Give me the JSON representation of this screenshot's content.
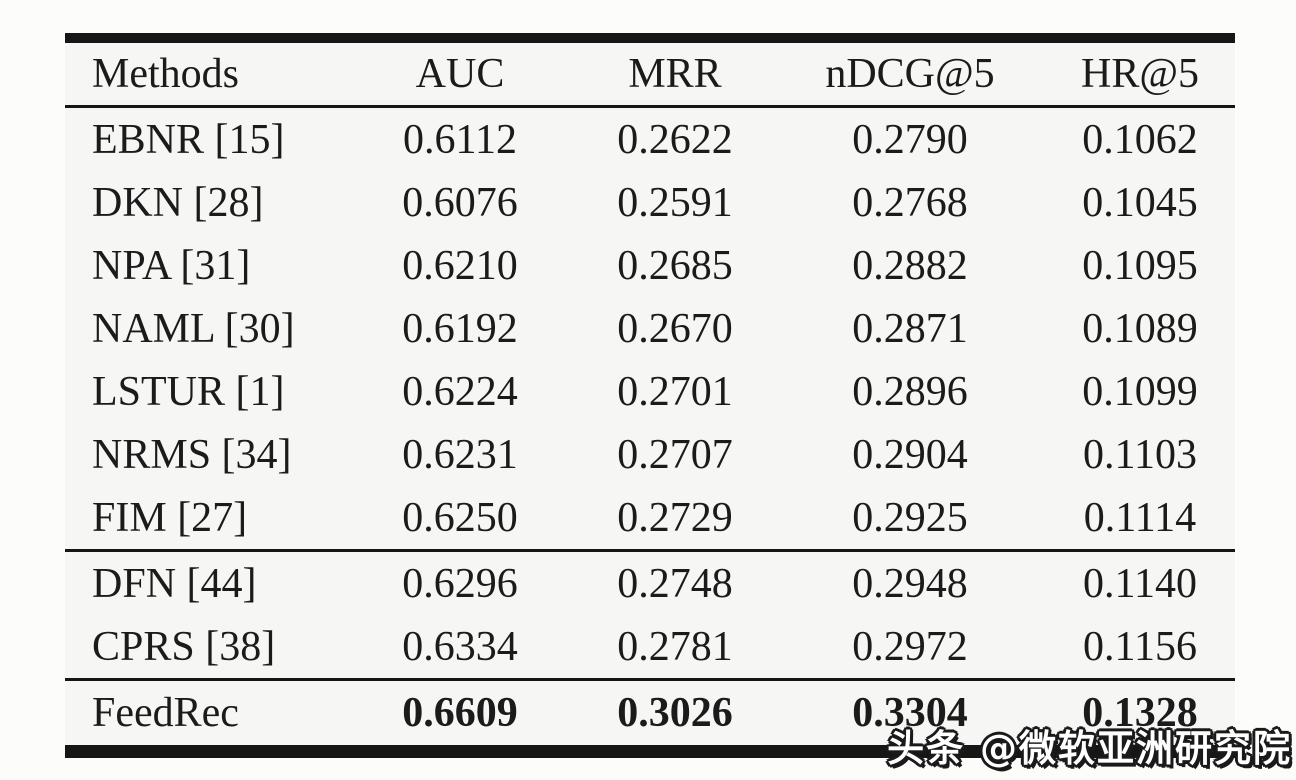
{
  "table": {
    "columns": [
      "Methods",
      "AUC",
      "MRR",
      "nDCG@5",
      "HR@5"
    ],
    "sections": [
      {
        "bold": false,
        "rows": [
          {
            "method": "EBNR [15]",
            "values": [
              "0.6112",
              "0.2622",
              "0.2790",
              "0.1062"
            ]
          },
          {
            "method": "DKN [28]",
            "values": [
              "0.6076",
              "0.2591",
              "0.2768",
              "0.1045"
            ]
          },
          {
            "method": "NPA [31]",
            "values": [
              "0.6210",
              "0.2685",
              "0.2882",
              "0.1095"
            ]
          },
          {
            "method": "NAML [30]",
            "values": [
              "0.6192",
              "0.2670",
              "0.2871",
              "0.1089"
            ]
          },
          {
            "method": "LSTUR [1]",
            "values": [
              "0.6224",
              "0.2701",
              "0.2896",
              "0.1099"
            ]
          },
          {
            "method": "NRMS [34]",
            "values": [
              "0.6231",
              "0.2707",
              "0.2904",
              "0.1103"
            ]
          },
          {
            "method": "FIM [27]",
            "values": [
              "0.6250",
              "0.2729",
              "0.2925",
              "0.1114"
            ]
          }
        ]
      },
      {
        "bold": false,
        "rows": [
          {
            "method": "DFN [44]",
            "values": [
              "0.6296",
              "0.2748",
              "0.2948",
              "0.1140"
            ]
          },
          {
            "method": "CPRS [38]",
            "values": [
              "0.6334",
              "0.2781",
              "0.2972",
              "0.1156"
            ]
          }
        ]
      },
      {
        "bold": true,
        "rows": [
          {
            "method": "FeedRec",
            "values": [
              "0.6609",
              "0.3026",
              "0.3304",
              "0.1328"
            ]
          }
        ]
      }
    ]
  },
  "watermark": {
    "text": "头条 @微软亚洲研究院"
  },
  "colors": {
    "text": "#1b1b1b",
    "rule": "#161616",
    "table_bg": "#f6f6f4",
    "page_bg": "#fcfcfb",
    "watermark_fill": "#ffffff",
    "watermark_outline": "#1a1a1a"
  }
}
